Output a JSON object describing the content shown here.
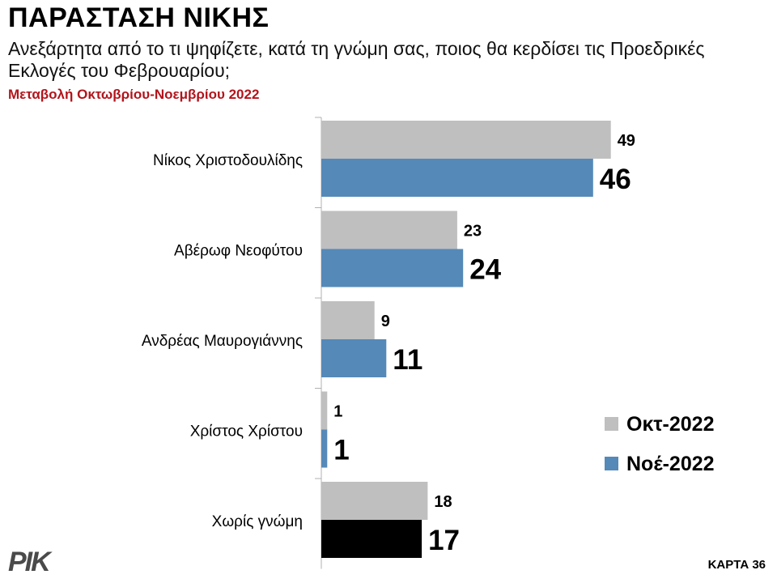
{
  "header": {
    "title": "ΠΑΡΑΣΤΑΣΗ ΝΙΚΗΣ",
    "subtitle": "Ανεξάρτητα από το τι ψηφίζετε, κατά τη γνώμη σας, ποιος θα κερδίσει τις Προεδρικές Εκλογές του Φεβρουαρίου;",
    "period": "Μεταβολή Οκτωβρίου-Νοεμβρίου 2022"
  },
  "footer": {
    "logo": "ΡΙΚ",
    "map_code": "ΚΑΡΤΑ 36"
  },
  "chart_data": {
    "type": "bar",
    "orientation": "horizontal",
    "categories": [
      "Νίκος Χριστοδουλίδης",
      "Αβέρωφ Νεοφύτου",
      "Ανδρέας Μαυρογιάννης",
      "Χρίστος Χρίστου",
      "Χωρίς γνώμη"
    ],
    "series": [
      {
        "name": "Οκτ-2022",
        "values": [
          49,
          23,
          9,
          1,
          18
        ],
        "color": "#bfbfbf"
      },
      {
        "name": "Νοέ-2022",
        "values": [
          46,
          24,
          11,
          1,
          17
        ],
        "color": "#5589b8",
        "point_colors": [
          "#5589b8",
          "#5589b8",
          "#5589b8",
          "#5589b8",
          "#000000"
        ]
      }
    ],
    "xlim": [
      0,
      50
    ],
    "grid": false,
    "legend_position": "right"
  }
}
